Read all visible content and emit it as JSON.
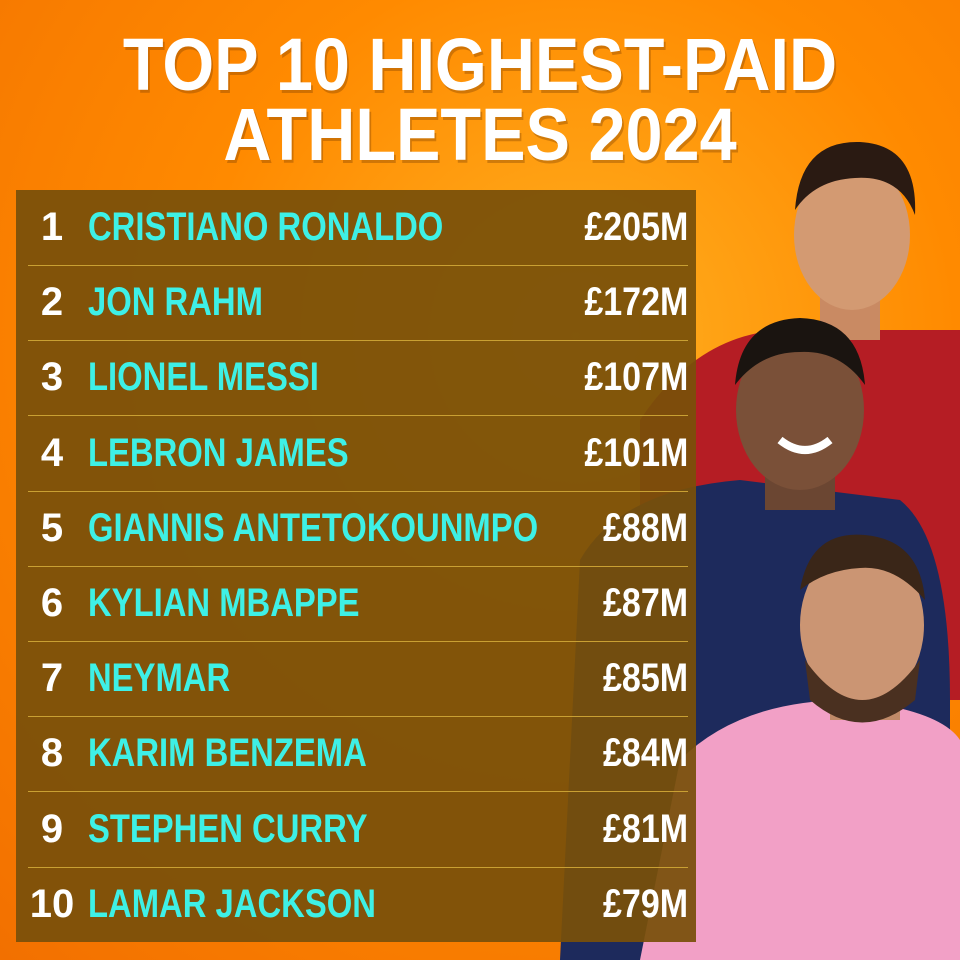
{
  "header": {
    "title_lines": [
      "TOP 10 HIGHEST-PAID",
      "ATHLETES 2024"
    ]
  },
  "table": {
    "rows": [
      [
        "1",
        "CRISTIANO RONALDO",
        "£205M"
      ],
      [
        "2",
        "JON RAHM",
        "£172M"
      ],
      [
        "3",
        "LIONEL MESSI",
        "£107M"
      ],
      [
        "4",
        "LEBRON JAMES",
        "£101M"
      ],
      [
        "5",
        "GIANNIS ANTETOKOUNMPO",
        "£88M"
      ],
      [
        "6",
        "KYLIAN MBAPPE",
        "£87M"
      ],
      [
        "7",
        "NEYMAR",
        "£85M"
      ],
      [
        "8",
        "KARIM BENZEMA",
        "£84M"
      ],
      [
        "9",
        "STEPHEN CURRY",
        "£81M"
      ],
      [
        "10",
        "LAMAR JACKSON",
        "£79M"
      ]
    ]
  }
}
